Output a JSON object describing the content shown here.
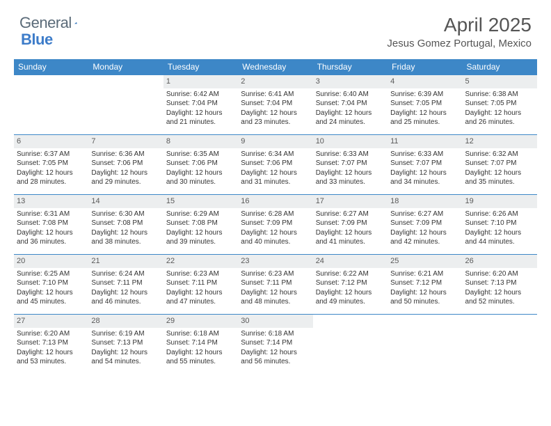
{
  "brand": {
    "name1": "General",
    "name2": "Blue"
  },
  "title": "April 2025",
  "location": "Jesus Gomez Portugal, Mexico",
  "colors": {
    "header_bg": "#3d87c7",
    "header_text": "#ffffff",
    "daynum_bg": "#eceeef",
    "border": "#3d87c7",
    "body_text": "#333333",
    "title_text": "#555555"
  },
  "weekdays": [
    "Sunday",
    "Monday",
    "Tuesday",
    "Wednesday",
    "Thursday",
    "Friday",
    "Saturday"
  ],
  "weeks": [
    [
      null,
      null,
      {
        "n": "1",
        "sr": "Sunrise: 6:42 AM",
        "ss": "Sunset: 7:04 PM",
        "dl": "Daylight: 12 hours and 21 minutes."
      },
      {
        "n": "2",
        "sr": "Sunrise: 6:41 AM",
        "ss": "Sunset: 7:04 PM",
        "dl": "Daylight: 12 hours and 23 minutes."
      },
      {
        "n": "3",
        "sr": "Sunrise: 6:40 AM",
        "ss": "Sunset: 7:04 PM",
        "dl": "Daylight: 12 hours and 24 minutes."
      },
      {
        "n": "4",
        "sr": "Sunrise: 6:39 AM",
        "ss": "Sunset: 7:05 PM",
        "dl": "Daylight: 12 hours and 25 minutes."
      },
      {
        "n": "5",
        "sr": "Sunrise: 6:38 AM",
        "ss": "Sunset: 7:05 PM",
        "dl": "Daylight: 12 hours and 26 minutes."
      }
    ],
    [
      {
        "n": "6",
        "sr": "Sunrise: 6:37 AM",
        "ss": "Sunset: 7:05 PM",
        "dl": "Daylight: 12 hours and 28 minutes."
      },
      {
        "n": "7",
        "sr": "Sunrise: 6:36 AM",
        "ss": "Sunset: 7:06 PM",
        "dl": "Daylight: 12 hours and 29 minutes."
      },
      {
        "n": "8",
        "sr": "Sunrise: 6:35 AM",
        "ss": "Sunset: 7:06 PM",
        "dl": "Daylight: 12 hours and 30 minutes."
      },
      {
        "n": "9",
        "sr": "Sunrise: 6:34 AM",
        "ss": "Sunset: 7:06 PM",
        "dl": "Daylight: 12 hours and 31 minutes."
      },
      {
        "n": "10",
        "sr": "Sunrise: 6:33 AM",
        "ss": "Sunset: 7:07 PM",
        "dl": "Daylight: 12 hours and 33 minutes."
      },
      {
        "n": "11",
        "sr": "Sunrise: 6:33 AM",
        "ss": "Sunset: 7:07 PM",
        "dl": "Daylight: 12 hours and 34 minutes."
      },
      {
        "n": "12",
        "sr": "Sunrise: 6:32 AM",
        "ss": "Sunset: 7:07 PM",
        "dl": "Daylight: 12 hours and 35 minutes."
      }
    ],
    [
      {
        "n": "13",
        "sr": "Sunrise: 6:31 AM",
        "ss": "Sunset: 7:08 PM",
        "dl": "Daylight: 12 hours and 36 minutes."
      },
      {
        "n": "14",
        "sr": "Sunrise: 6:30 AM",
        "ss": "Sunset: 7:08 PM",
        "dl": "Daylight: 12 hours and 38 minutes."
      },
      {
        "n": "15",
        "sr": "Sunrise: 6:29 AM",
        "ss": "Sunset: 7:08 PM",
        "dl": "Daylight: 12 hours and 39 minutes."
      },
      {
        "n": "16",
        "sr": "Sunrise: 6:28 AM",
        "ss": "Sunset: 7:09 PM",
        "dl": "Daylight: 12 hours and 40 minutes."
      },
      {
        "n": "17",
        "sr": "Sunrise: 6:27 AM",
        "ss": "Sunset: 7:09 PM",
        "dl": "Daylight: 12 hours and 41 minutes."
      },
      {
        "n": "18",
        "sr": "Sunrise: 6:27 AM",
        "ss": "Sunset: 7:09 PM",
        "dl": "Daylight: 12 hours and 42 minutes."
      },
      {
        "n": "19",
        "sr": "Sunrise: 6:26 AM",
        "ss": "Sunset: 7:10 PM",
        "dl": "Daylight: 12 hours and 44 minutes."
      }
    ],
    [
      {
        "n": "20",
        "sr": "Sunrise: 6:25 AM",
        "ss": "Sunset: 7:10 PM",
        "dl": "Daylight: 12 hours and 45 minutes."
      },
      {
        "n": "21",
        "sr": "Sunrise: 6:24 AM",
        "ss": "Sunset: 7:11 PM",
        "dl": "Daylight: 12 hours and 46 minutes."
      },
      {
        "n": "22",
        "sr": "Sunrise: 6:23 AM",
        "ss": "Sunset: 7:11 PM",
        "dl": "Daylight: 12 hours and 47 minutes."
      },
      {
        "n": "23",
        "sr": "Sunrise: 6:23 AM",
        "ss": "Sunset: 7:11 PM",
        "dl": "Daylight: 12 hours and 48 minutes."
      },
      {
        "n": "24",
        "sr": "Sunrise: 6:22 AM",
        "ss": "Sunset: 7:12 PM",
        "dl": "Daylight: 12 hours and 49 minutes."
      },
      {
        "n": "25",
        "sr": "Sunrise: 6:21 AM",
        "ss": "Sunset: 7:12 PM",
        "dl": "Daylight: 12 hours and 50 minutes."
      },
      {
        "n": "26",
        "sr": "Sunrise: 6:20 AM",
        "ss": "Sunset: 7:13 PM",
        "dl": "Daylight: 12 hours and 52 minutes."
      }
    ],
    [
      {
        "n": "27",
        "sr": "Sunrise: 6:20 AM",
        "ss": "Sunset: 7:13 PM",
        "dl": "Daylight: 12 hours and 53 minutes."
      },
      {
        "n": "28",
        "sr": "Sunrise: 6:19 AM",
        "ss": "Sunset: 7:13 PM",
        "dl": "Daylight: 12 hours and 54 minutes."
      },
      {
        "n": "29",
        "sr": "Sunrise: 6:18 AM",
        "ss": "Sunset: 7:14 PM",
        "dl": "Daylight: 12 hours and 55 minutes."
      },
      {
        "n": "30",
        "sr": "Sunrise: 6:18 AM",
        "ss": "Sunset: 7:14 PM",
        "dl": "Daylight: 12 hours and 56 minutes."
      },
      null,
      null,
      null
    ]
  ]
}
